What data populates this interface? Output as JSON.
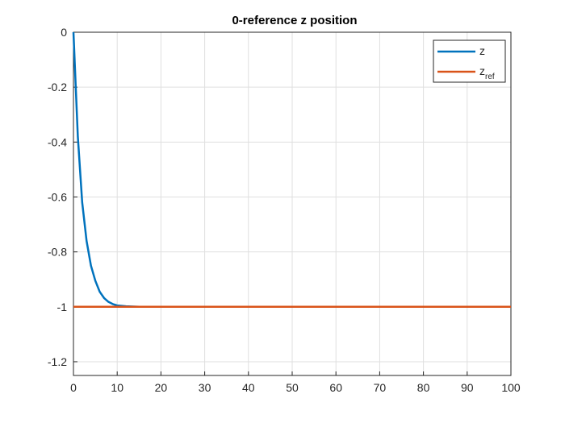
{
  "chart_data": {
    "type": "line",
    "title": "0-reference z position",
    "xlabel": "",
    "ylabel": "",
    "xlim": [
      0,
      100
    ],
    "ylim": [
      -1.25,
      0
    ],
    "xticks": [
      0,
      10,
      20,
      30,
      40,
      50,
      60,
      70,
      80,
      90,
      100
    ],
    "yticks": [
      0,
      -0.2,
      -0.4,
      -0.6,
      -0.8,
      -1,
      -1.2
    ],
    "xtick_labels": [
      "0",
      "10",
      "20",
      "30",
      "40",
      "50",
      "60",
      "70",
      "80",
      "90",
      "100"
    ],
    "ytick_labels": [
      "0",
      "-0.2",
      "-0.4",
      "-0.6",
      "-0.8",
      "-1",
      "-1.2"
    ],
    "grid": true,
    "legend_position": "top-right",
    "series": [
      {
        "name": "z",
        "color": "#0072BD",
        "x": [
          0,
          1,
          2,
          3,
          4,
          5,
          6,
          7,
          8,
          9,
          10,
          12,
          15,
          20,
          30,
          40,
          50,
          60,
          70,
          80,
          90,
          100
        ],
        "y": [
          0,
          -0.38,
          -0.62,
          -0.76,
          -0.85,
          -0.905,
          -0.945,
          -0.968,
          -0.982,
          -0.99,
          -0.995,
          -0.998,
          -1,
          -1,
          -1,
          -1,
          -1,
          -1,
          -1,
          -1,
          -1,
          -1
        ]
      },
      {
        "name": "z_ref",
        "color": "#D95319",
        "x": [
          0,
          100
        ],
        "y": [
          -1,
          -1
        ]
      }
    ],
    "legend": [
      {
        "base": "z",
        "sub": ""
      },
      {
        "base": "z",
        "sub": "ref"
      }
    ]
  }
}
